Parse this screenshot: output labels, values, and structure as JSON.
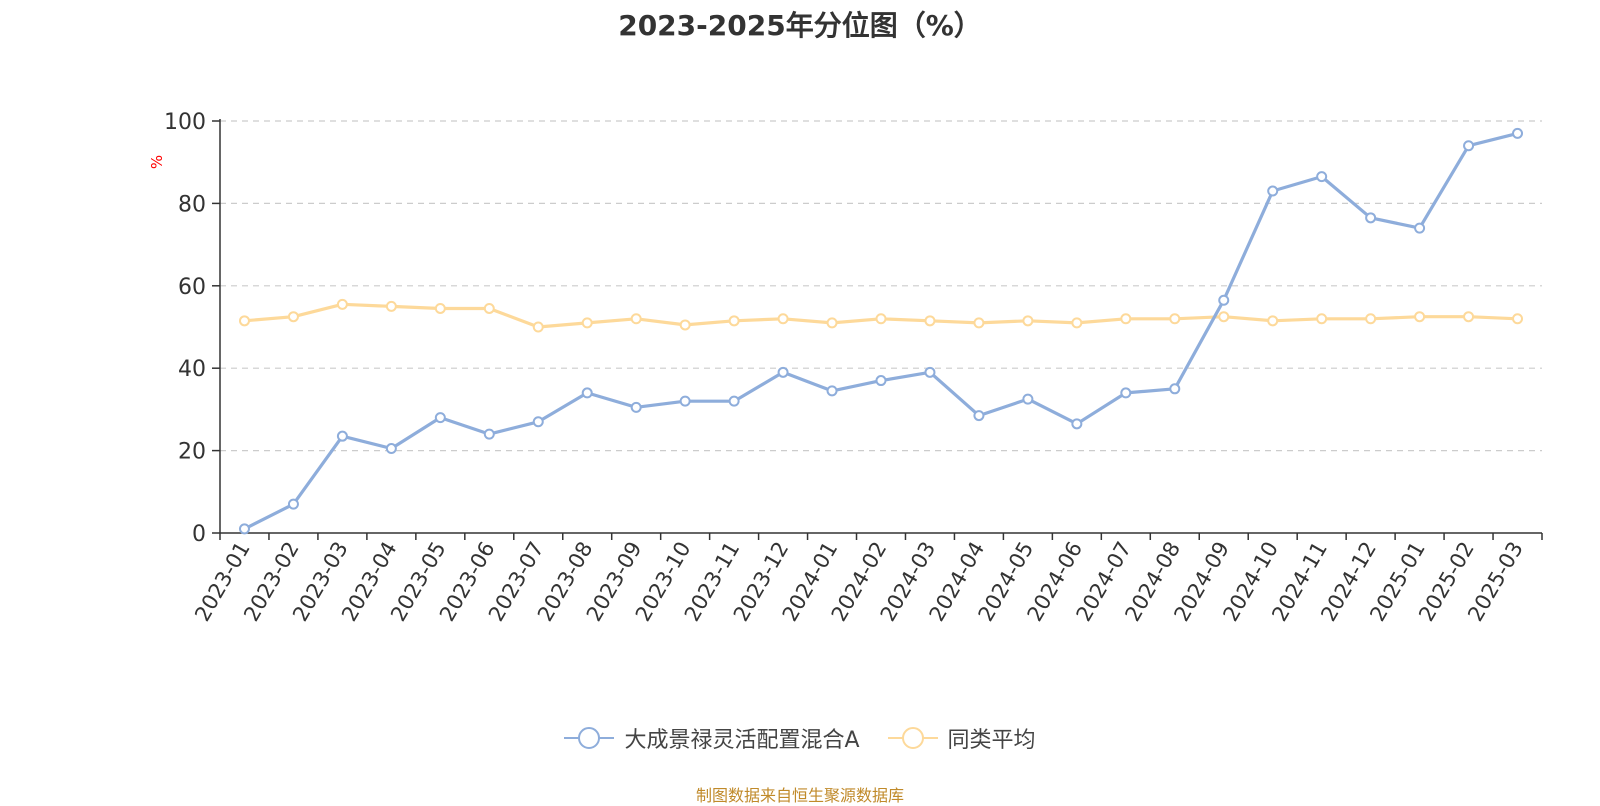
{
  "title": "2023-2025年分位图（%）",
  "source": "制图数据来自恒生聚源数据库",
  "colors": {
    "series_a": "#8eaddb",
    "series_b": "#fdd99a",
    "ylabel": "#ff0000"
  },
  "chart_data": {
    "type": "line",
    "title": "2023-2025年分位图（%）",
    "xlabel": "",
    "ylabel": "%",
    "ylim": [
      0,
      100
    ],
    "yticks": [
      0,
      20,
      40,
      60,
      80,
      100
    ],
    "grid": true,
    "legend_position": "bottom",
    "categories": [
      "2023-01",
      "2023-02",
      "2023-03",
      "2023-04",
      "2023-05",
      "2023-06",
      "2023-07",
      "2023-08",
      "2023-09",
      "2023-10",
      "2023-11",
      "2023-12",
      "2024-01",
      "2024-02",
      "2024-03",
      "2024-04",
      "2024-05",
      "2024-06",
      "2024-07",
      "2024-08",
      "2024-09",
      "2024-10",
      "2024-11",
      "2024-12",
      "2025-01",
      "2025-02",
      "2025-03"
    ],
    "series": [
      {
        "name": "大成景禄灵活配置混合A",
        "values": [
          1.0,
          7.0,
          23.5,
          20.5,
          28.0,
          24.0,
          27.0,
          34.0,
          30.5,
          32.0,
          32.0,
          39.0,
          34.5,
          37.0,
          39.0,
          28.5,
          32.5,
          26.5,
          34.0,
          35.0,
          56.5,
          83.0,
          86.5,
          76.5,
          74.0,
          94.0,
          97.0
        ]
      },
      {
        "name": "同类平均",
        "values": [
          51.5,
          52.5,
          55.5,
          55.0,
          54.5,
          54.5,
          50.0,
          51.0,
          52.0,
          50.5,
          51.5,
          52.0,
          51.0,
          52.0,
          51.5,
          51.0,
          51.5,
          51.0,
          52.0,
          52.0,
          52.5,
          51.5,
          52.0,
          52.0,
          52.5,
          52.5,
          52.0
        ]
      }
    ]
  }
}
